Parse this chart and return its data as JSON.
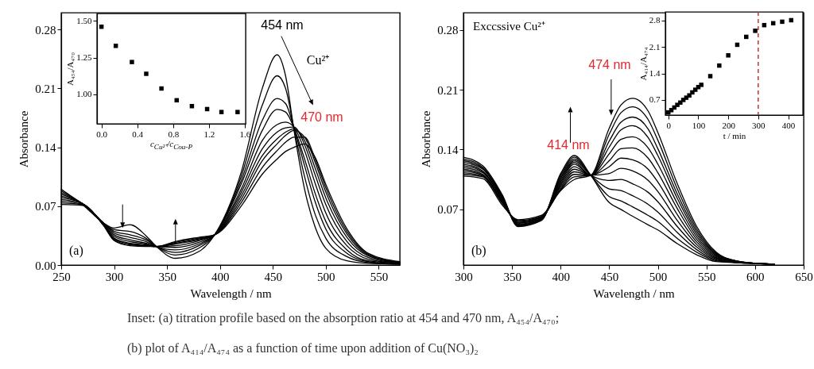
{
  "chart_data": [
    {
      "type": "line",
      "xlabel": "Wavelength / nm",
      "ylabel": "Absorbance",
      "xlim": [
        250,
        570
      ],
      "ylim": [
        0,
        0.3
      ],
      "xticks": [
        250,
        300,
        350,
        400,
        450,
        500,
        550
      ],
      "yticks": [
        {
          "value": 0,
          "label": "0.00"
        },
        0.07,
        0.14,
        0.21,
        0.28
      ],
      "x": [
        250,
        270,
        290,
        300,
        315,
        330,
        340,
        358,
        380,
        395,
        420,
        440,
        454,
        462,
        470,
        480,
        490,
        500,
        520,
        540,
        570
      ],
      "series": [
        {
          "color": "#000000",
          "values": [
            0.09,
            0.072,
            0.05,
            0.044,
            0.048,
            0.035,
            0.022,
            0.008,
            0.016,
            0.036,
            0.11,
            0.21,
            0.25,
            0.225,
            0.16,
            0.09,
            0.045,
            0.02,
            0.005,
            0.002,
            0.001
          ]
        },
        {
          "color": "#000000",
          "values": [
            0.088,
            0.073,
            0.05,
            0.042,
            0.04,
            0.032,
            0.022,
            0.012,
            0.02,
            0.036,
            0.105,
            0.19,
            0.225,
            0.21,
            0.162,
            0.105,
            0.06,
            0.032,
            0.01,
            0.003,
            0.001
          ]
        },
        {
          "color": "#000000",
          "values": [
            0.086,
            0.073,
            0.05,
            0.04,
            0.036,
            0.03,
            0.022,
            0.015,
            0.023,
            0.036,
            0.1,
            0.172,
            0.198,
            0.192,
            0.163,
            0.118,
            0.075,
            0.043,
            0.014,
            0.004,
            0.001
          ]
        },
        {
          "color": "#000000",
          "values": [
            0.084,
            0.073,
            0.05,
            0.038,
            0.033,
            0.028,
            0.022,
            0.018,
            0.025,
            0.036,
            0.096,
            0.16,
            0.185,
            0.182,
            0.163,
            0.126,
            0.085,
            0.052,
            0.018,
            0.005,
            0.002
          ]
        },
        {
          "color": "#000000",
          "values": [
            0.082,
            0.073,
            0.049,
            0.036,
            0.03,
            0.026,
            0.022,
            0.021,
            0.027,
            0.036,
            0.09,
            0.148,
            0.167,
            0.17,
            0.164,
            0.136,
            0.097,
            0.062,
            0.023,
            0.007,
            0.002
          ]
        },
        {
          "color": "#000000",
          "values": [
            0.08,
            0.073,
            0.049,
            0.034,
            0.028,
            0.025,
            0.022,
            0.023,
            0.029,
            0.036,
            0.086,
            0.138,
            0.158,
            0.163,
            0.164,
            0.143,
            0.107,
            0.072,
            0.028,
            0.009,
            0.002
          ]
        },
        {
          "color": "#000000",
          "values": [
            0.078,
            0.073,
            0.048,
            0.032,
            0.026,
            0.024,
            0.022,
            0.025,
            0.03,
            0.036,
            0.082,
            0.13,
            0.15,
            0.158,
            0.162,
            0.148,
            0.115,
            0.08,
            0.033,
            0.011,
            0.003
          ]
        },
        {
          "color": "#000000",
          "values": [
            0.076,
            0.072,
            0.048,
            0.031,
            0.025,
            0.023,
            0.022,
            0.026,
            0.031,
            0.036,
            0.078,
            0.124,
            0.144,
            0.154,
            0.16,
            0.152,
            0.122,
            0.087,
            0.037,
            0.012,
            0.003
          ]
        },
        {
          "color": "#000000",
          "values": [
            0.074,
            0.072,
            0.047,
            0.03,
            0.024,
            0.023,
            0.022,
            0.027,
            0.032,
            0.036,
            0.074,
            0.116,
            0.136,
            0.146,
            0.152,
            0.152,
            0.126,
            0.092,
            0.04,
            0.013,
            0.003
          ]
        },
        {
          "color": "#000000",
          "values": [
            0.072,
            0.071,
            0.047,
            0.029,
            0.023,
            0.022,
            0.022,
            0.028,
            0.033,
            0.036,
            0.07,
            0.108,
            0.126,
            0.135,
            0.14,
            0.144,
            0.128,
            0.096,
            0.043,
            0.014,
            0.004
          ]
        }
      ],
      "annotations": [
        "454 nm",
        "Cu²⁺",
        "470 nm",
        "(a)",
        "Inset: (a) titration profile based on the absorption ratio at 454 and 470 nm, A₄₅₄/A₄₇₀;",
        "(b) plot of A₄₁₄/A₄₇₄ as a function of time upon addition of Cu(NO₃)₂"
      ]
    },
    {
      "type": "scatter",
      "marker": "square",
      "xlabel": "c$_{Cu²⁺}$/c$_{Cou-P}$",
      "ylabel": "A₄₅₄/A₄₇₀",
      "xlim": [
        -0.05,
        1.61
      ],
      "ylim": [
        0.8,
        1.55
      ],
      "xticks": [
        {
          "value": 0,
          "label": "0.0"
        },
        0.4,
        0.8,
        1.2,
        1.6
      ],
      "yticks": [
        {
          "value": 1,
          "label": "1.00"
        },
        1.25,
        {
          "value": 1.5,
          "label": "1.50"
        }
      ],
      "x": [
        0,
        0.16,
        0.34,
        0.5,
        0.67,
        0.84,
        1.01,
        1.18,
        1.34,
        1.52
      ],
      "series": [
        {
          "color": "#000000",
          "values": [
            1.46,
            1.33,
            1.22,
            1.14,
            1.04,
            0.96,
            0.92,
            0.9,
            0.88,
            0.88
          ]
        }
      ]
    },
    {
      "type": "line",
      "xlabel": "Wavelength / nm",
      "ylabel": "Absorbance",
      "xlim": [
        300,
        650
      ],
      "ylim": [
        0.005,
        0.3
      ],
      "xticks": [
        300,
        350,
        400,
        450,
        500,
        550,
        600,
        650
      ],
      "yticks": [
        0.07,
        0.14,
        0.21,
        0.28
      ],
      "x": [
        300,
        320,
        340,
        356,
        380,
        400,
        414,
        431,
        450,
        462,
        474,
        490,
        500,
        520,
        540,
        560,
        580,
        600,
        620
      ],
      "series": [
        {
          "color": "#000000",
          "values": [
            0.109,
            0.106,
            0.075,
            0.058,
            0.063,
            0.092,
            0.105,
            0.11,
            0.165,
            0.192,
            0.2,
            0.185,
            0.16,
            0.1,
            0.05,
            0.02,
            0.01,
            0.007,
            0.006
          ]
        },
        {
          "color": "#000000",
          "values": [
            0.111,
            0.108,
            0.077,
            0.057,
            0.062,
            0.093,
            0.108,
            0.11,
            0.158,
            0.183,
            0.19,
            0.175,
            0.151,
            0.094,
            0.047,
            0.019,
            0.01,
            0.007,
            0.006
          ]
        },
        {
          "color": "#000000",
          "values": [
            0.113,
            0.109,
            0.078,
            0.056,
            0.061,
            0.094,
            0.111,
            0.11,
            0.15,
            0.172,
            0.178,
            0.164,
            0.141,
            0.088,
            0.044,
            0.018,
            0.01,
            0.007,
            0.006
          ]
        },
        {
          "color": "#000000",
          "values": [
            0.115,
            0.11,
            0.079,
            0.055,
            0.061,
            0.096,
            0.114,
            0.11,
            0.143,
            0.163,
            0.168,
            0.154,
            0.133,
            0.083,
            0.041,
            0.017,
            0.009,
            0.007,
            0.006
          ]
        },
        {
          "color": "#000000",
          "values": [
            0.117,
            0.111,
            0.08,
            0.054,
            0.06,
            0.098,
            0.117,
            0.11,
            0.135,
            0.152,
            0.155,
            0.142,
            0.123,
            0.077,
            0.038,
            0.016,
            0.009,
            0.007,
            0.006
          ]
        },
        {
          "color": "#000000",
          "values": [
            0.119,
            0.113,
            0.081,
            0.054,
            0.06,
            0.1,
            0.12,
            0.11,
            0.127,
            0.141,
            0.142,
            0.13,
            0.113,
            0.071,
            0.035,
            0.015,
            0.009,
            0.007,
            0.006
          ]
        },
        {
          "color": "#000000",
          "values": [
            0.121,
            0.114,
            0.082,
            0.053,
            0.059,
            0.102,
            0.123,
            0.11,
            0.12,
            0.13,
            0.128,
            0.117,
            0.102,
            0.064,
            0.032,
            0.014,
            0.009,
            0.007,
            0.006
          ]
        },
        {
          "color": "#000000",
          "values": [
            0.123,
            0.115,
            0.083,
            0.052,
            0.059,
            0.104,
            0.125,
            0.11,
            0.112,
            0.118,
            0.115,
            0.104,
            0.091,
            0.057,
            0.029,
            0.013,
            0.008,
            0.007,
            0.006
          ]
        },
        {
          "color": "#000000",
          "values": [
            0.125,
            0.117,
            0.084,
            0.052,
            0.058,
            0.106,
            0.127,
            0.11,
            0.104,
            0.105,
            0.1,
            0.09,
            0.079,
            0.05,
            0.026,
            0.012,
            0.008,
            0.007,
            0.006
          ]
        },
        {
          "color": "#000000",
          "values": [
            0.127,
            0.118,
            0.085,
            0.051,
            0.058,
            0.108,
            0.129,
            0.11,
            0.094,
            0.092,
            0.086,
            0.076,
            0.067,
            0.043,
            0.023,
            0.011,
            0.008,
            0.007,
            0.006
          ]
        },
        {
          "color": "#000000",
          "values": [
            0.129,
            0.119,
            0.086,
            0.051,
            0.057,
            0.11,
            0.131,
            0.11,
            0.085,
            0.08,
            0.073,
            0.063,
            0.056,
            0.036,
            0.02,
            0.01,
            0.008,
            0.007,
            0.006
          ]
        },
        {
          "color": "#000000",
          "values": [
            0.131,
            0.121,
            0.087,
            0.05,
            0.057,
            0.112,
            0.133,
            0.11,
            0.078,
            0.07,
            0.062,
            0.052,
            0.046,
            0.03,
            0.017,
            0.009,
            0.008,
            0.007,
            0.006
          ]
        }
      ],
      "annotations": [
        "474 nm",
        "414 nm",
        "Exccssive Cu²⁺",
        "(b)"
      ]
    },
    {
      "type": "scatter",
      "marker": "square",
      "xlabel": "t / min",
      "ylabel": "A₄₁₄/A₄₇₄",
      "xlim": [
        -10,
        449
      ],
      "ylim": [
        0.3,
        3.03
      ],
      "xticks": [
        0,
        100,
        200,
        300,
        400
      ],
      "yticks": [
        0.7,
        1.4,
        2.1,
        2.8
      ],
      "x": [
        0,
        10,
        20,
        30,
        40,
        50,
        60,
        70,
        80,
        90,
        100,
        110,
        140,
        170,
        200,
        230,
        260,
        290,
        320,
        350,
        380,
        410
      ],
      "series": [
        {
          "color": "#000000",
          "values": [
            0.37,
            0.43,
            0.5,
            0.57,
            0.63,
            0.7,
            0.76,
            0.82,
            0.9,
            0.97,
            1.04,
            1.1,
            1.33,
            1.61,
            1.88,
            2.16,
            2.37,
            2.53,
            2.68,
            2.73,
            2.77,
            2.81
          ]
        }
      ],
      "ref_lines": [
        {
          "axis": "x",
          "value": 300,
          "color": "#d0312d",
          "line_style": "dashed"
        }
      ]
    }
  ]
}
